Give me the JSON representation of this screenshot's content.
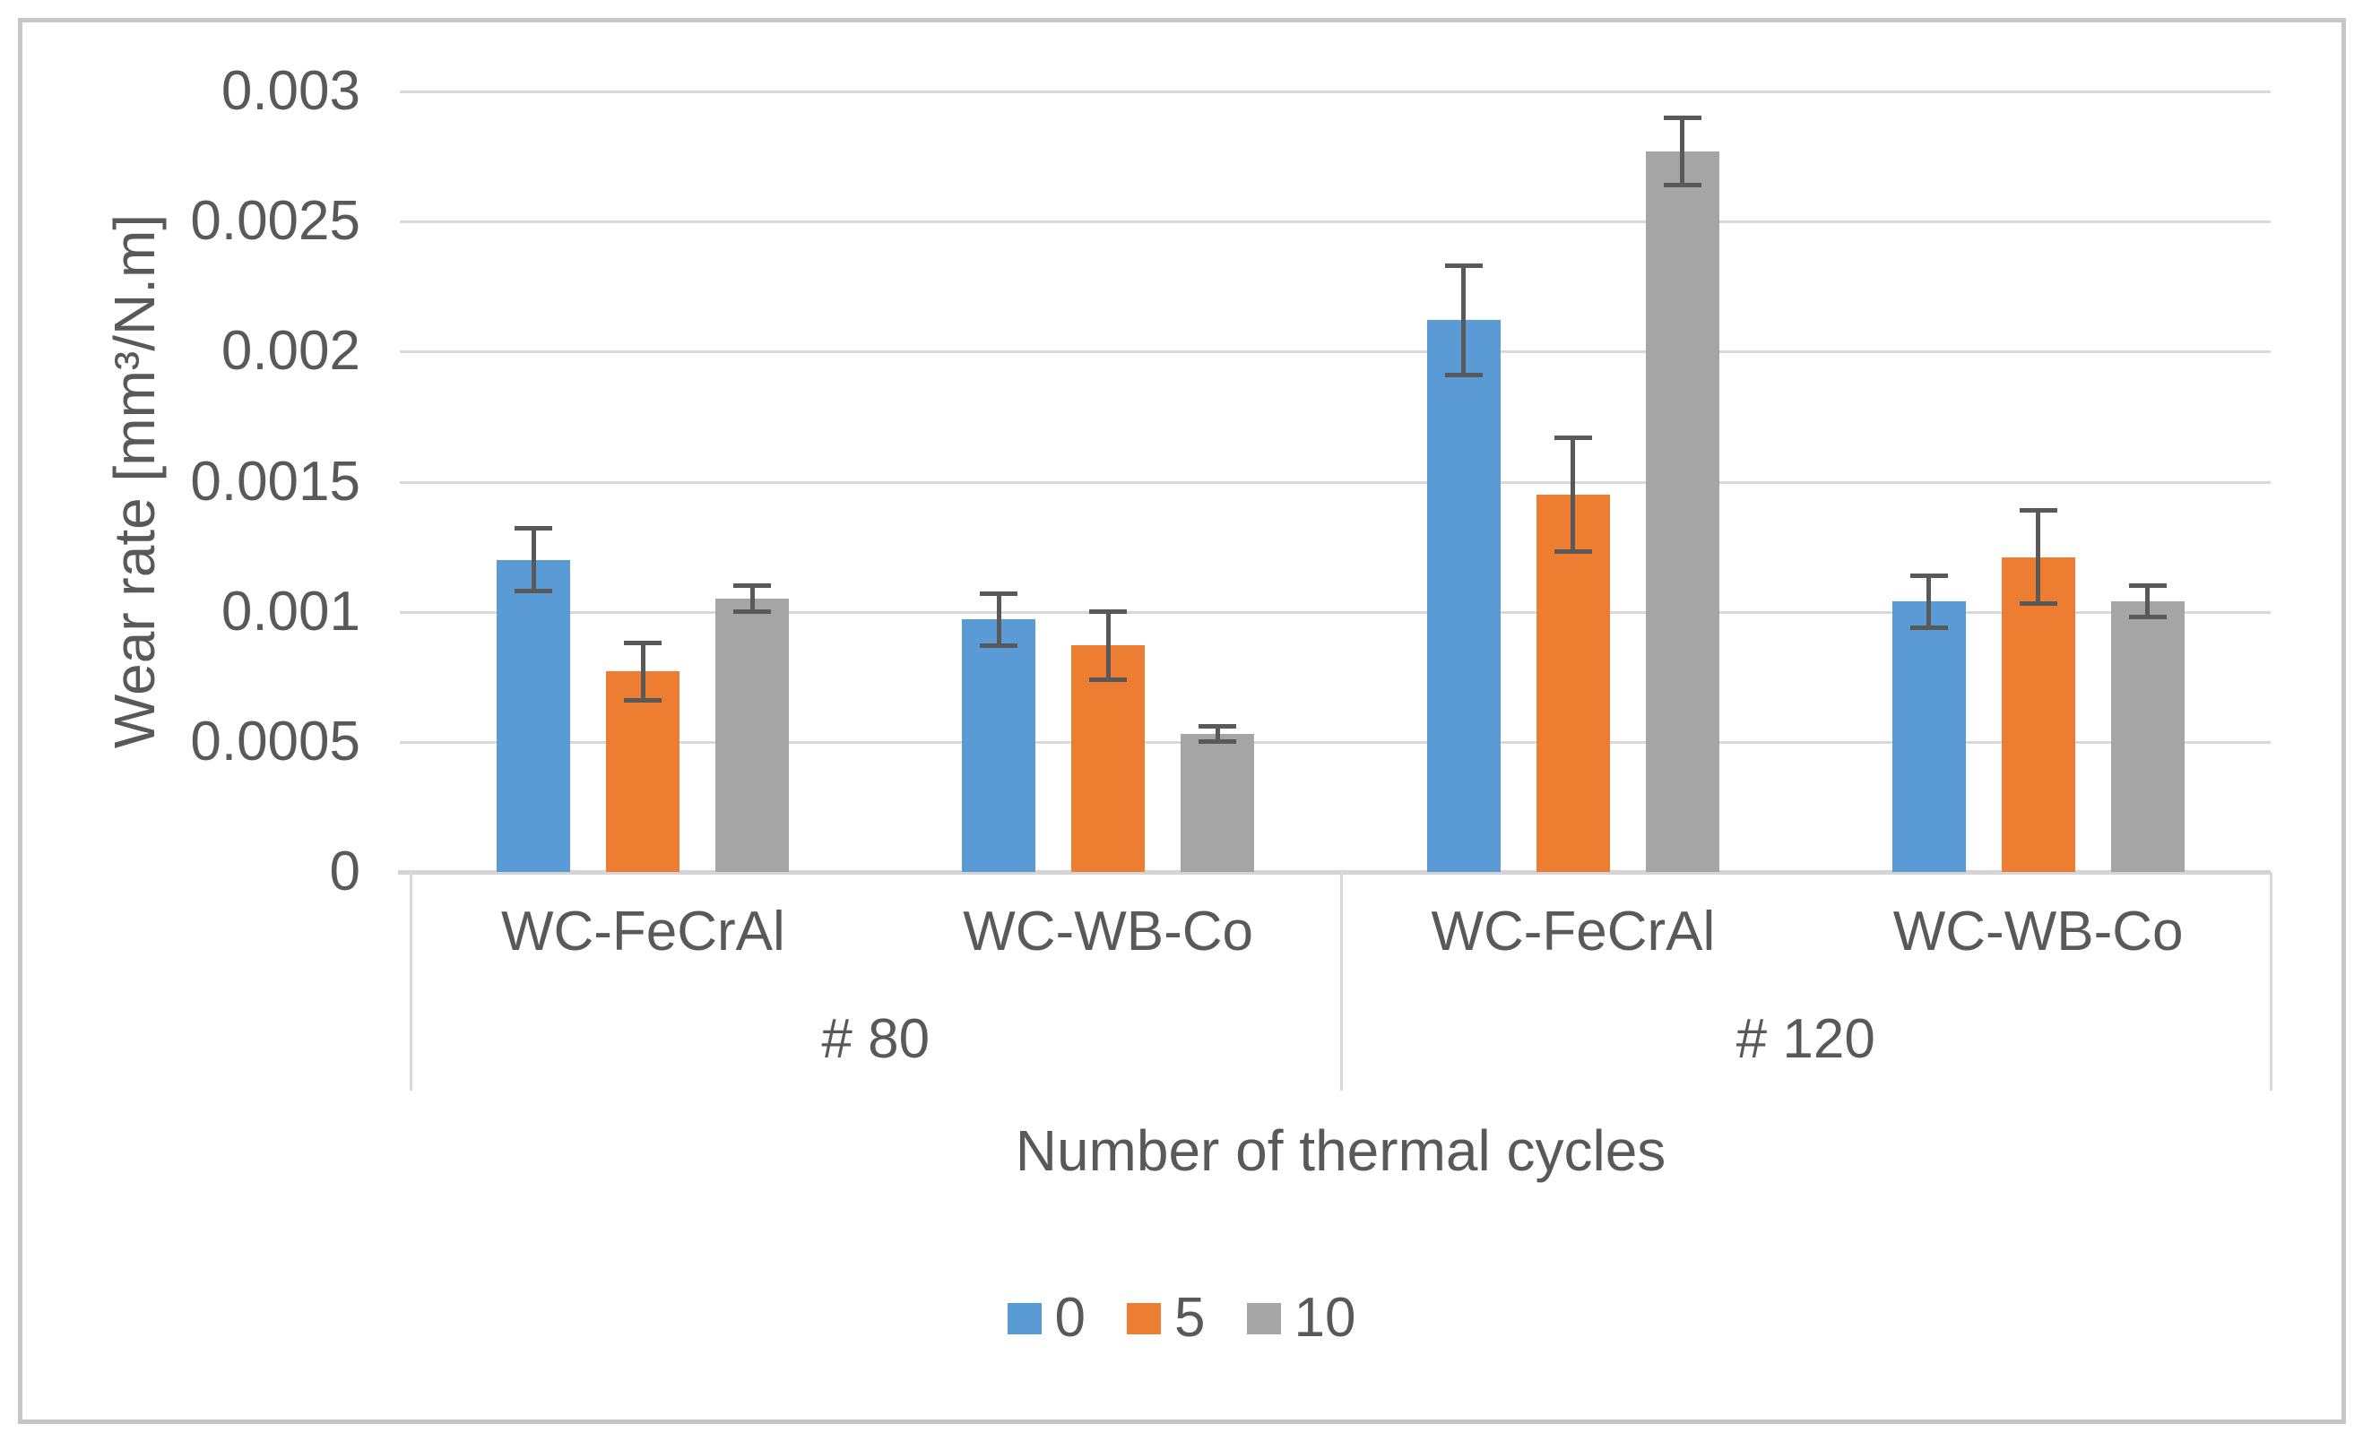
{
  "figure": {
    "x_axis_title": "Number of thermal cycles",
    "y_axis_title": "Wear rate [mm³/N.m]"
  },
  "chart_data": {
    "type": "bar",
    "title": "",
    "xlabel": "Number of thermal cycles",
    "ylabel": "Wear rate [mm³/N.m]",
    "ylim": [
      0,
      0.003
    ],
    "yticks": [
      "0",
      "0.0005",
      "0.001",
      "0.0015",
      "0.002",
      "0.0025",
      "0.003"
    ],
    "grid": true,
    "legend_position": "bottom",
    "groups": [
      {
        "label": "# 80",
        "categories": [
          "WC-FeCrAl",
          "WC-WB-Co"
        ]
      },
      {
        "label": "# 120",
        "categories": [
          "WC-FeCrAl",
          "WC-WB-Co"
        ]
      }
    ],
    "category_order": [
      "# 80 / WC-FeCrAl",
      "# 80 / WC-WB-Co",
      "# 120 / WC-FeCrAl",
      "# 120 / WC-WB-Co"
    ],
    "series": [
      {
        "name": "0",
        "color": "#5B9BD5",
        "values": [
          0.0012,
          0.00097,
          0.00212,
          0.00104
        ],
        "errors": [
          0.00012,
          0.0001,
          0.00021,
          0.0001
        ]
      },
      {
        "name": "5",
        "color": "#ED7D31",
        "values": [
          0.00077,
          0.00087,
          0.00145,
          0.00121
        ],
        "errors": [
          0.00011,
          0.00013,
          0.00022,
          0.00018
        ]
      },
      {
        "name": "10",
        "color": "#A5A5A5",
        "values": [
          0.00105,
          0.00053,
          0.00277,
          0.00104
        ],
        "errors": [
          5e-05,
          3e-05,
          0.00013,
          6e-05
        ]
      }
    ],
    "colors": {
      "gridline": "#D9D9D9",
      "axis_line": "#D4D4D4",
      "error_bar": "#595959",
      "text": "#595959"
    }
  }
}
